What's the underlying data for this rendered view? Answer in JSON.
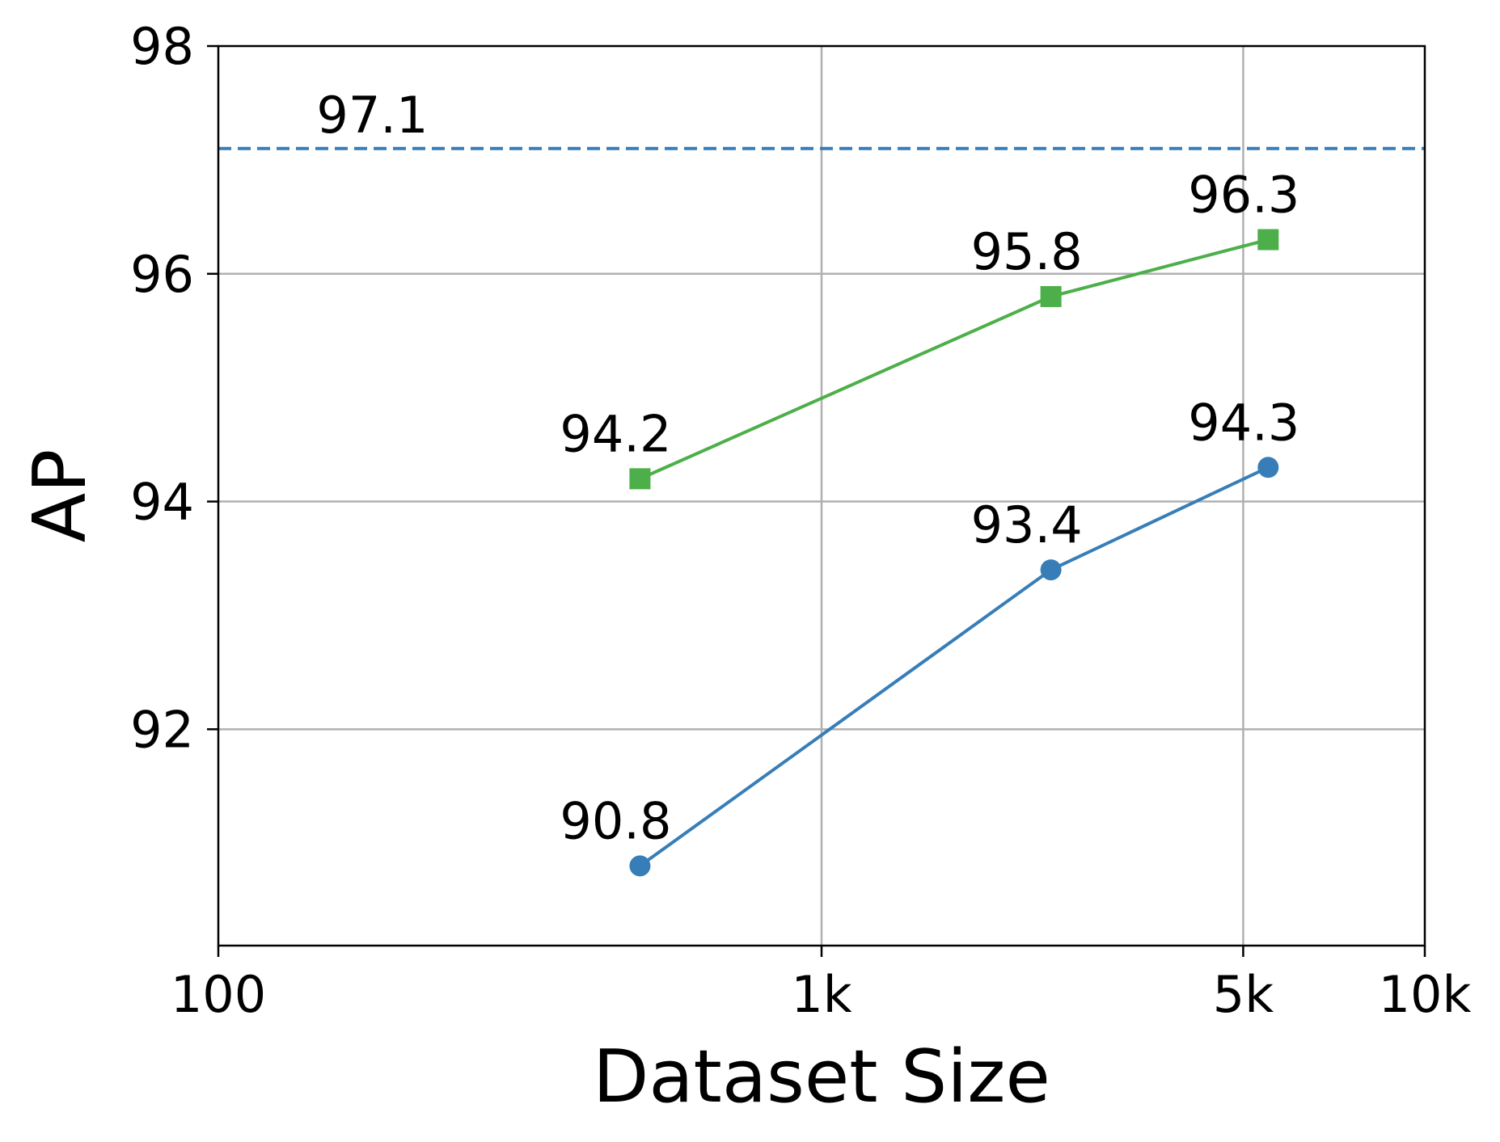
{
  "chart_data": {
    "type": "line",
    "xlabel": "Dataset Size",
    "ylabel": "AP",
    "x_scale": "log",
    "xlim": [
      100,
      10000
    ],
    "ylim": [
      90.1,
      98
    ],
    "x_ticks": [
      {
        "value": 100,
        "label": "100"
      },
      {
        "value": 1000,
        "label": "1k"
      },
      {
        "value": 5000,
        "label": "5k"
      },
      {
        "value": 10000,
        "label": "10k"
      }
    ],
    "y_ticks": [
      {
        "value": 92,
        "label": "92"
      },
      {
        "value": 94,
        "label": "94"
      },
      {
        "value": 96,
        "label": "96"
      },
      {
        "value": 98,
        "label": "98"
      }
    ],
    "grid": true,
    "series": [
      {
        "color": "#4daf4a",
        "marker": "square",
        "x": [
          500,
          2400,
          5500
        ],
        "values": [
          94.2,
          95.8,
          96.3
        ],
        "labels": [
          "94.2",
          "95.8",
          "96.3"
        ]
      },
      {
        "color": "#377eb8",
        "marker": "circle",
        "x": [
          500,
          2400,
          5500
        ],
        "values": [
          90.8,
          93.4,
          94.3
        ],
        "labels": [
          "90.8",
          "93.4",
          "94.3"
        ]
      }
    ],
    "reference_lines": [
      {
        "y": 97.1,
        "label": "97.1",
        "label_x": 180,
        "color": "#377eb8",
        "style": "dashed"
      }
    ]
  }
}
